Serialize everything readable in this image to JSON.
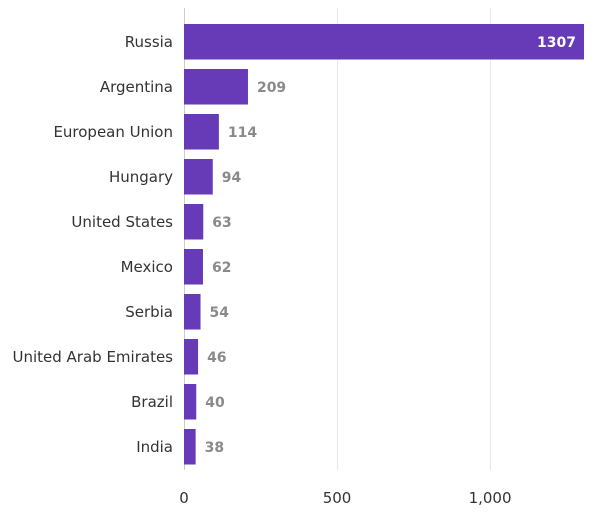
{
  "chart_data": {
    "type": "bar",
    "orientation": "horizontal",
    "title": "",
    "xlabel": "",
    "ylabel": "",
    "categories": [
      "Russia",
      "Argentina",
      "European Union",
      "Hungary",
      "United States",
      "Mexico",
      "Serbia",
      "United Arab Emirates",
      "Brazil",
      "India"
    ],
    "values": [
      1307,
      209,
      114,
      94,
      63,
      62,
      54,
      46,
      40,
      38
    ],
    "value_labels": [
      "1307",
      "209",
      "114",
      "94",
      "63",
      "62",
      "54",
      "46",
      "40",
      "38"
    ],
    "xlim": [
      0,
      1307
    ],
    "xticks": [
      0,
      500,
      1000
    ],
    "xtick_labels": [
      "0",
      "500",
      "1,000"
    ],
    "grid": true,
    "legend": "none",
    "bar_color": "#673ab7",
    "label_color_inside": "#ffffff",
    "label_color_outside": "#8a8a8a"
  }
}
